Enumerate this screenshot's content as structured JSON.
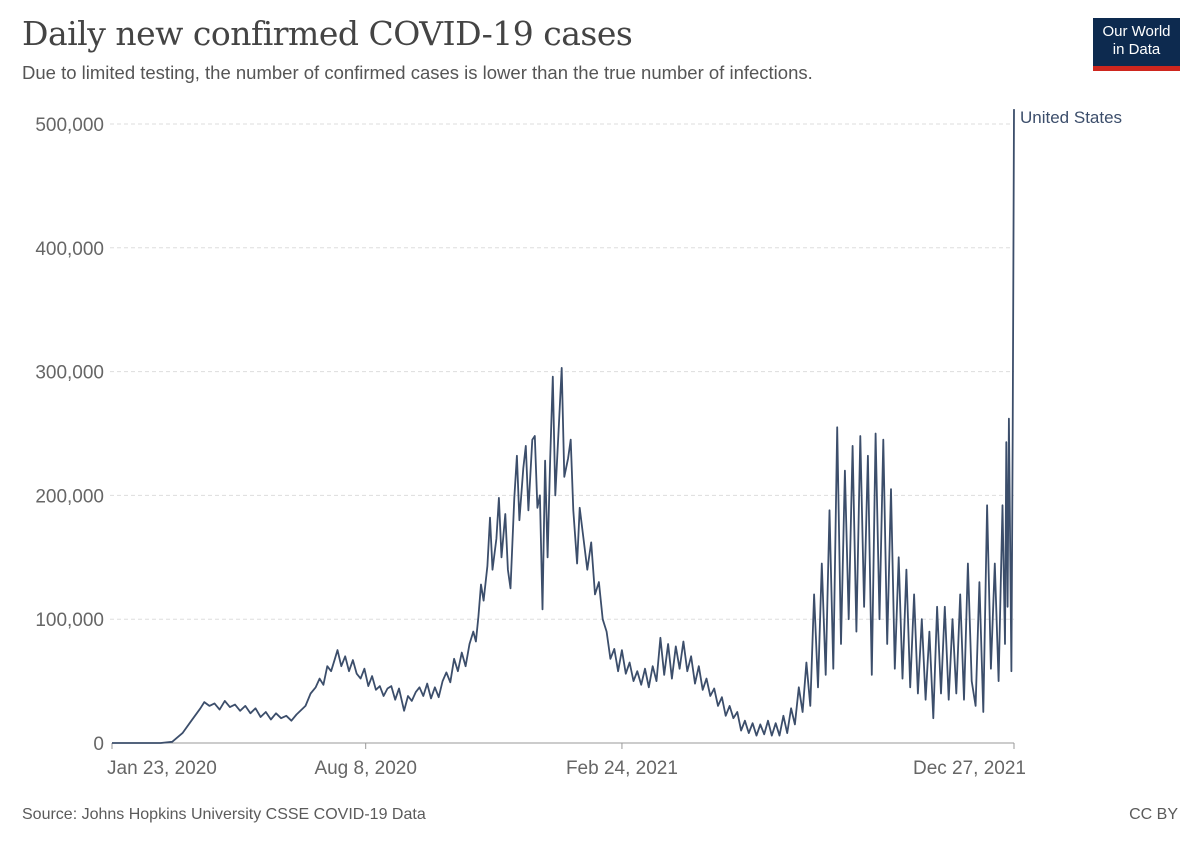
{
  "header": {
    "title": "Daily new confirmed COVID-19 cases",
    "subtitle": "Due to limited testing, the number of confirmed cases is lower than the true number of infections.",
    "logo_line1": "Our World",
    "logo_line2": "in Data"
  },
  "footer": {
    "source": "Source: Johns Hopkins University CSSE COVID-19 Data",
    "license": "CC BY"
  },
  "colors": {
    "series": "#3c4e6b",
    "grid": "#dddddd",
    "axis_text": "#666666",
    "logo_bg": "#0d2a4f",
    "logo_accent": "#ce261e"
  },
  "chart_data": {
    "type": "line",
    "title": "Daily new confirmed COVID-19 cases",
    "subtitle": "Due to limited testing, the number of confirmed cases is lower than the true number of infections.",
    "xlabel": "",
    "ylabel": "",
    "ylim": [
      0,
      500000
    ],
    "yticks": [
      0,
      100000,
      200000,
      300000,
      400000,
      500000
    ],
    "ytick_labels": [
      "0",
      "100,000",
      "200,000",
      "300,000",
      "400,000",
      "500,000"
    ],
    "xlim": [
      "2020-01-23",
      "2021-12-27"
    ],
    "xticks": [
      "2020-01-23",
      "2020-08-08",
      "2021-02-24",
      "2021-12-27"
    ],
    "xtick_labels": [
      "Jan 23, 2020",
      "Aug 8, 2020",
      "Feb 24, 2021",
      "Dec 27, 2021"
    ],
    "grid": "horizontal dashed",
    "legend": "inline label at line end",
    "series": [
      {
        "name": "United States",
        "points": [
          [
            "2020-01-23",
            0
          ],
          [
            "2020-03-01",
            0
          ],
          [
            "2020-03-10",
            1000
          ],
          [
            "2020-03-18",
            8000
          ],
          [
            "2020-03-25",
            18000
          ],
          [
            "2020-04-01",
            28000
          ],
          [
            "2020-04-04",
            33000
          ],
          [
            "2020-04-08",
            30000
          ],
          [
            "2020-04-12",
            32000
          ],
          [
            "2020-04-16",
            27000
          ],
          [
            "2020-04-20",
            34000
          ],
          [
            "2020-04-24",
            29000
          ],
          [
            "2020-04-28",
            31000
          ],
          [
            "2020-05-02",
            26000
          ],
          [
            "2020-05-06",
            30000
          ],
          [
            "2020-05-10",
            24000
          ],
          [
            "2020-05-14",
            28000
          ],
          [
            "2020-05-18",
            21000
          ],
          [
            "2020-05-22",
            25000
          ],
          [
            "2020-05-26",
            19000
          ],
          [
            "2020-05-30",
            24000
          ],
          [
            "2020-06-03",
            20000
          ],
          [
            "2020-06-07",
            22000
          ],
          [
            "2020-06-11",
            18000
          ],
          [
            "2020-06-15",
            23000
          ],
          [
            "2020-06-19",
            27000
          ],
          [
            "2020-06-22",
            30000
          ],
          [
            "2020-06-26",
            40000
          ],
          [
            "2020-06-30",
            45000
          ],
          [
            "2020-07-03",
            52000
          ],
          [
            "2020-07-06",
            47000
          ],
          [
            "2020-07-09",
            62000
          ],
          [
            "2020-07-12",
            58000
          ],
          [
            "2020-07-15",
            68000
          ],
          [
            "2020-07-17",
            75000
          ],
          [
            "2020-07-20",
            62000
          ],
          [
            "2020-07-23",
            70000
          ],
          [
            "2020-07-26",
            58000
          ],
          [
            "2020-07-29",
            67000
          ],
          [
            "2020-08-01",
            56000
          ],
          [
            "2020-08-04",
            52000
          ],
          [
            "2020-08-07",
            60000
          ],
          [
            "2020-08-10",
            46000
          ],
          [
            "2020-08-13",
            54000
          ],
          [
            "2020-08-16",
            43000
          ],
          [
            "2020-08-19",
            46000
          ],
          [
            "2020-08-22",
            38000
          ],
          [
            "2020-08-25",
            44000
          ],
          [
            "2020-08-28",
            46000
          ],
          [
            "2020-08-31",
            35000
          ],
          [
            "2020-09-03",
            44000
          ],
          [
            "2020-09-07",
            26000
          ],
          [
            "2020-09-10",
            38000
          ],
          [
            "2020-09-13",
            34000
          ],
          [
            "2020-09-16",
            41000
          ],
          [
            "2020-09-19",
            45000
          ],
          [
            "2020-09-22",
            38000
          ],
          [
            "2020-09-25",
            48000
          ],
          [
            "2020-09-28",
            36000
          ],
          [
            "2020-10-01",
            45000
          ],
          [
            "2020-10-04",
            37000
          ],
          [
            "2020-10-07",
            50000
          ],
          [
            "2020-10-10",
            57000
          ],
          [
            "2020-10-13",
            49000
          ],
          [
            "2020-10-16",
            68000
          ],
          [
            "2020-10-19",
            58000
          ],
          [
            "2020-10-22",
            73000
          ],
          [
            "2020-10-25",
            62000
          ],
          [
            "2020-10-28",
            80000
          ],
          [
            "2020-10-31",
            90000
          ],
          [
            "2020-11-02",
            82000
          ],
          [
            "2020-11-04",
            102000
          ],
          [
            "2020-11-06",
            128000
          ],
          [
            "2020-11-08",
            115000
          ],
          [
            "2020-11-11",
            143000
          ],
          [
            "2020-11-13",
            182000
          ],
          [
            "2020-11-15",
            140000
          ],
          [
            "2020-11-18",
            165000
          ],
          [
            "2020-11-20",
            198000
          ],
          [
            "2020-11-22",
            150000
          ],
          [
            "2020-11-25",
            185000
          ],
          [
            "2020-11-27",
            140000
          ],
          [
            "2020-11-29",
            125000
          ],
          [
            "2020-12-02",
            198000
          ],
          [
            "2020-12-04",
            232000
          ],
          [
            "2020-12-06",
            180000
          ],
          [
            "2020-12-09",
            222000
          ],
          [
            "2020-12-11",
            240000
          ],
          [
            "2020-12-13",
            188000
          ],
          [
            "2020-12-16",
            245000
          ],
          [
            "2020-12-18",
            248000
          ],
          [
            "2020-12-20",
            190000
          ],
          [
            "2020-12-22",
            200000
          ],
          [
            "2020-12-24",
            108000
          ],
          [
            "2020-12-26",
            228000
          ],
          [
            "2020-12-28",
            150000
          ],
          [
            "2020-12-30",
            230000
          ],
          [
            "2021-01-01",
            296000
          ],
          [
            "2021-01-03",
            200000
          ],
          [
            "2021-01-06",
            262000
          ],
          [
            "2021-01-08",
            303000
          ],
          [
            "2021-01-10",
            215000
          ],
          [
            "2021-01-13",
            230000
          ],
          [
            "2021-01-15",
            245000
          ],
          [
            "2021-01-17",
            188000
          ],
          [
            "2021-01-20",
            145000
          ],
          [
            "2021-01-22",
            190000
          ],
          [
            "2021-01-25",
            165000
          ],
          [
            "2021-01-28",
            140000
          ],
          [
            "2021-01-31",
            162000
          ],
          [
            "2021-02-03",
            120000
          ],
          [
            "2021-02-06",
            130000
          ],
          [
            "2021-02-09",
            100000
          ],
          [
            "2021-02-12",
            90000
          ],
          [
            "2021-02-15",
            68000
          ],
          [
            "2021-02-18",
            76000
          ],
          [
            "2021-02-21",
            58000
          ],
          [
            "2021-02-24",
            75000
          ],
          [
            "2021-02-27",
            56000
          ],
          [
            "2021-03-02",
            65000
          ],
          [
            "2021-03-05",
            50000
          ],
          [
            "2021-03-08",
            58000
          ],
          [
            "2021-03-11",
            47000
          ],
          [
            "2021-03-14",
            60000
          ],
          [
            "2021-03-17",
            45000
          ],
          [
            "2021-03-20",
            62000
          ],
          [
            "2021-03-23",
            50000
          ],
          [
            "2021-03-26",
            85000
          ],
          [
            "2021-03-29",
            55000
          ],
          [
            "2021-04-01",
            80000
          ],
          [
            "2021-04-04",
            52000
          ],
          [
            "2021-04-07",
            78000
          ],
          [
            "2021-04-10",
            60000
          ],
          [
            "2021-04-13",
            82000
          ],
          [
            "2021-04-16",
            58000
          ],
          [
            "2021-04-19",
            70000
          ],
          [
            "2021-04-22",
            48000
          ],
          [
            "2021-04-25",
            62000
          ],
          [
            "2021-04-28",
            43000
          ],
          [
            "2021-05-01",
            52000
          ],
          [
            "2021-05-04",
            38000
          ],
          [
            "2021-05-07",
            44000
          ],
          [
            "2021-05-10",
            30000
          ],
          [
            "2021-05-13",
            37000
          ],
          [
            "2021-05-16",
            22000
          ],
          [
            "2021-05-19",
            30000
          ],
          [
            "2021-05-22",
            20000
          ],
          [
            "2021-05-25",
            25000
          ],
          [
            "2021-05-28",
            10000
          ],
          [
            "2021-05-31",
            18000
          ],
          [
            "2021-06-03",
            8000
          ],
          [
            "2021-06-06",
            16000
          ],
          [
            "2021-06-09",
            6000
          ],
          [
            "2021-06-12",
            15000
          ],
          [
            "2021-06-15",
            7000
          ],
          [
            "2021-06-18",
            18000
          ],
          [
            "2021-06-21",
            6000
          ],
          [
            "2021-06-24",
            16000
          ],
          [
            "2021-06-27",
            6000
          ],
          [
            "2021-06-30",
            22000
          ],
          [
            "2021-07-03",
            8000
          ],
          [
            "2021-07-06",
            28000
          ],
          [
            "2021-07-09",
            15000
          ],
          [
            "2021-07-12",
            45000
          ],
          [
            "2021-07-15",
            25000
          ],
          [
            "2021-07-18",
            65000
          ],
          [
            "2021-07-21",
            30000
          ],
          [
            "2021-07-24",
            120000
          ],
          [
            "2021-07-27",
            45000
          ],
          [
            "2021-07-30",
            145000
          ],
          [
            "2021-08-02",
            55000
          ],
          [
            "2021-08-05",
            188000
          ],
          [
            "2021-08-08",
            60000
          ],
          [
            "2021-08-11",
            255000
          ],
          [
            "2021-08-14",
            80000
          ],
          [
            "2021-08-17",
            220000
          ],
          [
            "2021-08-20",
            100000
          ],
          [
            "2021-08-23",
            240000
          ],
          [
            "2021-08-26",
            90000
          ],
          [
            "2021-08-29",
            248000
          ],
          [
            "2021-09-01",
            110000
          ],
          [
            "2021-09-04",
            232000
          ],
          [
            "2021-09-07",
            55000
          ],
          [
            "2021-09-10",
            250000
          ],
          [
            "2021-09-13",
            100000
          ],
          [
            "2021-09-16",
            245000
          ],
          [
            "2021-09-19",
            80000
          ],
          [
            "2021-09-22",
            205000
          ],
          [
            "2021-09-25",
            60000
          ],
          [
            "2021-09-28",
            150000
          ],
          [
            "2021-10-01",
            52000
          ],
          [
            "2021-10-04",
            140000
          ],
          [
            "2021-10-07",
            45000
          ],
          [
            "2021-10-10",
            120000
          ],
          [
            "2021-10-13",
            40000
          ],
          [
            "2021-10-16",
            100000
          ],
          [
            "2021-10-19",
            35000
          ],
          [
            "2021-10-22",
            90000
          ],
          [
            "2021-10-25",
            20000
          ],
          [
            "2021-10-28",
            110000
          ],
          [
            "2021-10-31",
            40000
          ],
          [
            "2021-11-03",
            110000
          ],
          [
            "2021-11-06",
            35000
          ],
          [
            "2021-11-09",
            100000
          ],
          [
            "2021-11-12",
            40000
          ],
          [
            "2021-11-15",
            120000
          ],
          [
            "2021-11-18",
            35000
          ],
          [
            "2021-11-21",
            145000
          ],
          [
            "2021-11-24",
            50000
          ],
          [
            "2021-11-27",
            30000
          ],
          [
            "2021-11-30",
            130000
          ],
          [
            "2021-12-03",
            25000
          ],
          [
            "2021-12-06",
            192000
          ],
          [
            "2021-12-09",
            60000
          ],
          [
            "2021-12-12",
            145000
          ],
          [
            "2021-12-15",
            50000
          ],
          [
            "2021-12-18",
            192000
          ],
          [
            "2021-12-20",
            80000
          ],
          [
            "2021-12-21",
            243000
          ],
          [
            "2021-12-22",
            110000
          ],
          [
            "2021-12-23",
            262000
          ],
          [
            "2021-12-25",
            58000
          ],
          [
            "2021-12-26",
            250000
          ],
          [
            "2021-12-27",
            512000
          ]
        ]
      }
    ]
  }
}
